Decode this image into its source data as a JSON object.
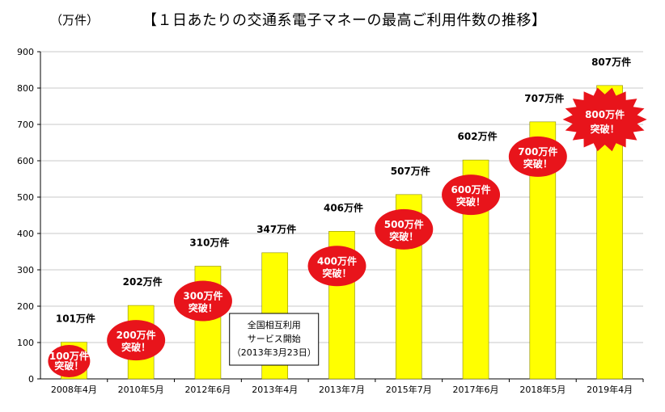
{
  "header": {
    "unit": "（万件）",
    "title": "【１日あたりの交通系電子マネーの最高ご利用件数の推移】"
  },
  "chart_data": {
    "type": "bar",
    "categories": [
      "2008年4月",
      "2010年5月",
      "2012年6月",
      "2013年4月",
      "2013年7月",
      "2015年7月",
      "2017年6月",
      "2018年5月",
      "2019年4月"
    ],
    "values": [
      101,
      202,
      310,
      347,
      406,
      507,
      602,
      707,
      807
    ],
    "data_labels": [
      "101万件",
      "202万件",
      "310万件",
      "347万件",
      "406万件",
      "507万件",
      "602万件",
      "707万件",
      "807万件"
    ],
    "ylim": [
      0,
      900
    ],
    "yticks": [
      0,
      100,
      200,
      300,
      400,
      500,
      600,
      700,
      800,
      900
    ],
    "grid": true,
    "bar_color": "#ffff00",
    "badge_color": "#e8141b",
    "badges": [
      {
        "index": 0,
        "line1": "100万件",
        "line2": "突破！",
        "shape": "ellipse",
        "size": "small"
      },
      {
        "index": 1,
        "line1": "200万件",
        "line2": "突破！",
        "shape": "ellipse",
        "size": "medium"
      },
      {
        "index": 2,
        "line1": "300万件",
        "line2": "突破！",
        "shape": "ellipse",
        "size": "medium"
      },
      {
        "index": 4,
        "line1": "400万件",
        "line2": "突破！",
        "shape": "ellipse",
        "size": "medium"
      },
      {
        "index": 5,
        "line1": "500万件",
        "line2": "突破！",
        "shape": "ellipse",
        "size": "medium"
      },
      {
        "index": 6,
        "line1": "600万件",
        "line2": "突破！",
        "shape": "ellipse",
        "size": "medium"
      },
      {
        "index": 7,
        "line1": "700万件",
        "line2": "突破！",
        "shape": "ellipse",
        "size": "medium"
      },
      {
        "index": 8,
        "line1": "800万件",
        "line2": "突破！",
        "shape": "burst",
        "size": "large"
      }
    ],
    "annotation": {
      "index": 3,
      "lines": [
        "全国相互利用",
        "サービス開始",
        "（2013年3月23日）"
      ]
    }
  }
}
